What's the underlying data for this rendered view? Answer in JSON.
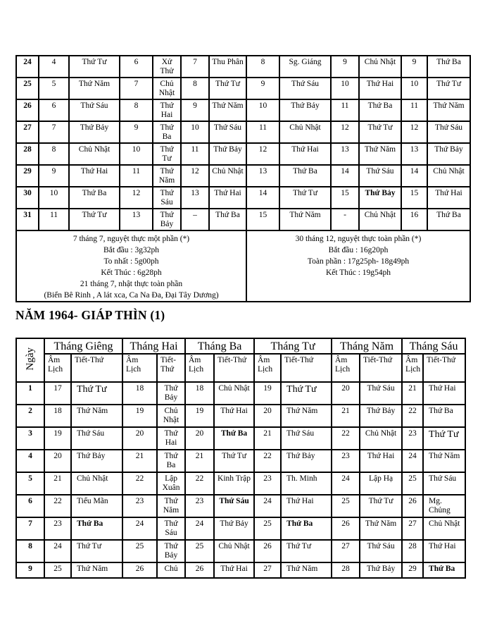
{
  "page": {
    "title": "NĂM 1964- GIÁP THÌN (1)"
  },
  "continuation_table": {
    "rows": [
      [
        "24",
        "4",
        "Thứ Tư",
        "6",
        "Xử Thử",
        "7",
        "Thu Phân",
        "8",
        "Sg. Giáng",
        "9",
        "Chủ  Nhật",
        "9",
        "Thứ Ba"
      ],
      [
        "25",
        "5",
        "Thứ Năm",
        "7",
        "Chủ Nhật",
        "8",
        "Thứ Tư",
        "9",
        "Thứ Sáu",
        "10",
        "Thứ Hai",
        "10",
        "Thứ Tư"
      ],
      [
        "26",
        "6",
        "Thứ Sáu",
        "8",
        "Thứ Hai",
        "9",
        "Thứ Năm",
        "10",
        "Thứ Bảy",
        "11",
        "Thứ  Ba",
        "11",
        "Thứ Năm"
      ],
      [
        "27",
        "7",
        "Thứ Bảy",
        "9",
        "Thứ Ba",
        "10",
        "Thứ Sáu",
        "11",
        "Chủ Nhật",
        "12",
        "Thứ Tư",
        "12",
        "Thứ  Sáu"
      ],
      [
        "28",
        "8",
        "Chủ Nhật",
        "10",
        "Thứ Tư",
        "11",
        "Thứ Bảy",
        "12",
        "Thứ Hai",
        "13",
        "Thứ  Năm",
        "13",
        "Thứ Bảy"
      ],
      [
        "29",
        "9",
        "Thứ Hai",
        "11",
        "Thứ Năm",
        "12",
        "Chủ Nhật",
        "13",
        "Thứ Ba",
        "14",
        "Thứ  Sáu",
        "14",
        "Chủ Nhật"
      ],
      [
        "30",
        "10",
        "Thứ Ba",
        "12",
        "Thứ Sáu",
        "13",
        "Thứ Hai",
        "14",
        "Thứ Tư",
        "15",
        {
          "text": "Thứ  Bảy",
          "bold": true
        },
        "15",
        "Thứ Hai"
      ],
      [
        "31",
        "11",
        "Thứ Tư",
        "13",
        "Thứ Bảy",
        "–",
        "Thứ Ba",
        "15",
        "Thứ  Năm",
        "-",
        "Chủ Nhật",
        "16",
        "Thứ  Ba"
      ]
    ],
    "eclipse_note_left": {
      "lines": [
        "7 tháng 7, nguyệt thực một phần (*)",
        "Bắt đầu : 3g32ph",
        "To nhất : 5g00ph",
        "Kết Thúc : 6g28ph",
        "21 tháng 7, nhật thực toàn phần",
        "(Biển Bê Rinh , A lát xca, Ca Na Đa, Đại Tây Dương)"
      ]
    },
    "eclipse_note_right": {
      "lines": [
        "30 tháng 12, nguyệt thực toàn phần  (*)",
        "Bắt đầu : 16g20ph",
        "Toàn phần : 17g25ph- 18g49ph",
        "Kết Thúc : 19g54ph"
      ]
    }
  },
  "month_table": {
    "day_col_label": "Ngày",
    "months": [
      "Tháng Giêng",
      "Tháng Hai",
      "Tháng Ba",
      "Tháng Tư",
      "Tháng Năm",
      "Tháng Sáu"
    ],
    "subheader": {
      "am_lich": "Âm Lịch",
      "tiet_thu": "Tiết-Thứ"
    },
    "rows": [
      [
        "1",
        "17",
        {
          "text": "Thứ Tư",
          "large": true
        },
        "18",
        "Thứ Bảy",
        "18",
        "Chủ Nhật",
        "19",
        {
          "text": "Thứ Tư",
          "large": true
        },
        "20",
        "Thứ Sáu",
        "21",
        "Thứ Hai"
      ],
      [
        "2",
        "18",
        "Thứ Năm",
        "19",
        "Chủ Nhật",
        "19",
        "Thứ Hai",
        "20",
        "Thứ Năm",
        "21",
        "Thứ Bảy",
        "22",
        "Thứ Ba"
      ],
      [
        "3",
        "19",
        "Thứ Sáu",
        "20",
        "Thứ Hai",
        "20",
        {
          "text": "Thứ  Ba",
          "bold": true
        },
        "21",
        "Thứ Sáu",
        "22",
        "Chủ Nhật",
        "23",
        {
          "text": "Thứ Tư",
          "large": true
        }
      ],
      [
        "4",
        "20",
        "Thứ  Bảy",
        "21",
        "Thứ Ba",
        "21",
        "Thứ Tư",
        "22",
        "Thứ  Bảy",
        "23",
        "Thứ  Hai",
        "24",
        "Thứ Năm"
      ],
      [
        "5",
        "21",
        "Chủ  Nhật",
        "22",
        "Lập Xuân",
        "22",
        "Kinh Trập",
        "23",
        "Th. Minh",
        "24",
        "Lập Hạ",
        "25",
        "Thứ  Sáu"
      ],
      [
        "6",
        "22",
        "Tiểu Mãn",
        "23",
        "Thứ Năm",
        "23",
        {
          "text": "Thứ Sáu",
          "bold": true
        },
        "24",
        "Thứ Hai",
        "25",
        "Thứ Tư",
        "26",
        "Mg. Chủng"
      ],
      [
        "7",
        "23",
        {
          "text": "Thứ Ba",
          "bold": true
        },
        "24",
        "Thứ Sáu",
        "24",
        "Thứ Bảy",
        "25",
        {
          "text": "Thứ Ba",
          "bold": true
        },
        "26",
        "Thứ Năm",
        "27",
        "Chủ Nhật"
      ],
      [
        "8",
        "24",
        "Thứ  Tư",
        "25",
        "Thứ Bảy",
        "25",
        "Chủ Nhật",
        "26",
        "Thứ  Tư",
        "27",
        "Thứ Sáu",
        "28",
        "Thứ Hai"
      ],
      [
        "9",
        "25",
        "Thứ  Năm",
        "26",
        "Chủ",
        "26",
        "Thứ Hai",
        "27",
        "Thứ  Năm",
        "28",
        "Thứ Bảy",
        "29",
        {
          "text": "Thứ Ba",
          "bold": true
        }
      ]
    ]
  }
}
